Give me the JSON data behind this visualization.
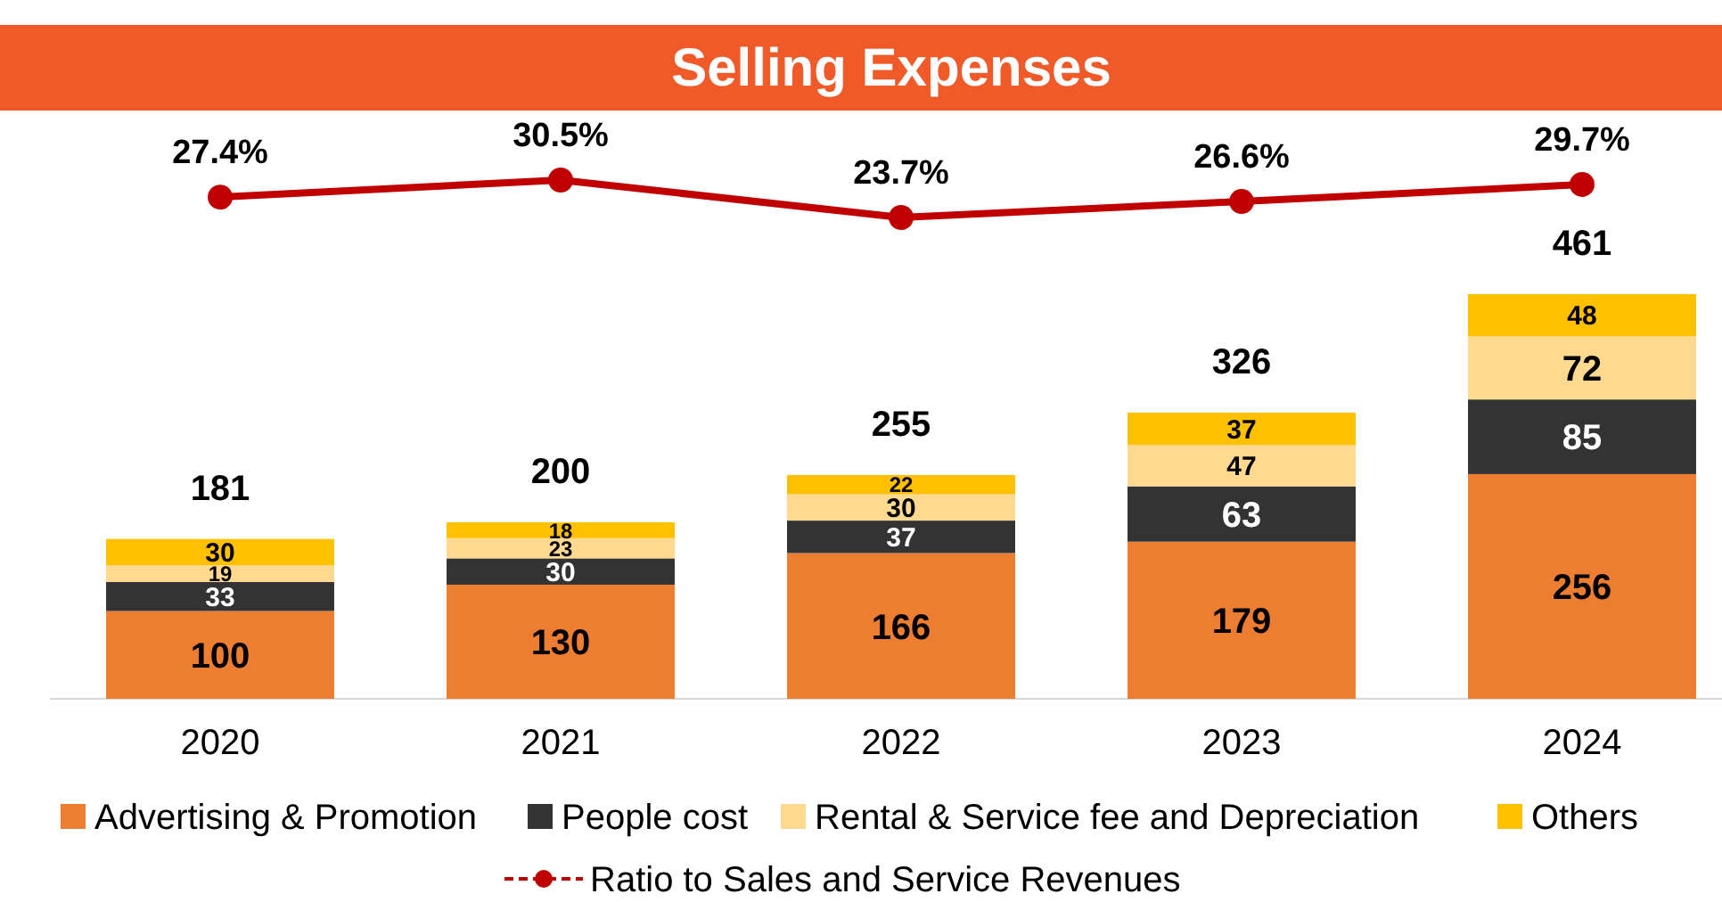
{
  "chart_data": [
    {
      "type": "line",
      "title": "Selling Expenses",
      "categories": [
        "2020",
        "2021",
        "2022",
        "2023",
        "2024"
      ],
      "tick_labels": false,
      "marker": "circle",
      "legend": "bottom",
      "series": [
        {
          "name": "Ratio to Sales and Service Revenues",
          "color": "#c00000",
          "values": [
            27.4,
            30.5,
            23.7,
            26.6,
            29.7
          ],
          "value_labels": [
            "27.4%",
            "30.5%",
            "23.7%",
            "26.6%",
            "29.7%"
          ]
        }
      ]
    },
    {
      "type": "bar",
      "categories": [
        "2020",
        "2021",
        "2022",
        "2023",
        "2024"
      ],
      "stacked": true,
      "data_labels": true,
      "legend": "bottom",
      "series": [
        {
          "name": "Advertising & Promotion",
          "color": "#ed7d31",
          "values": [
            100,
            130,
            166,
            179,
            256
          ]
        },
        {
          "name": "People cost",
          "color": "#333333",
          "values": [
            33,
            30,
            37,
            63,
            85
          ]
        },
        {
          "name": "Rental & Service fee and Depreciation",
          "color": "#ffd98f",
          "values": [
            19,
            23,
            30,
            47,
            72
          ]
        },
        {
          "name": "Others",
          "color": "#ffc000",
          "values": [
            30,
            18,
            22,
            37,
            48
          ]
        }
      ],
      "totals": [
        "181",
        "200",
        "255",
        "326",
        "461"
      ]
    }
  ]
}
